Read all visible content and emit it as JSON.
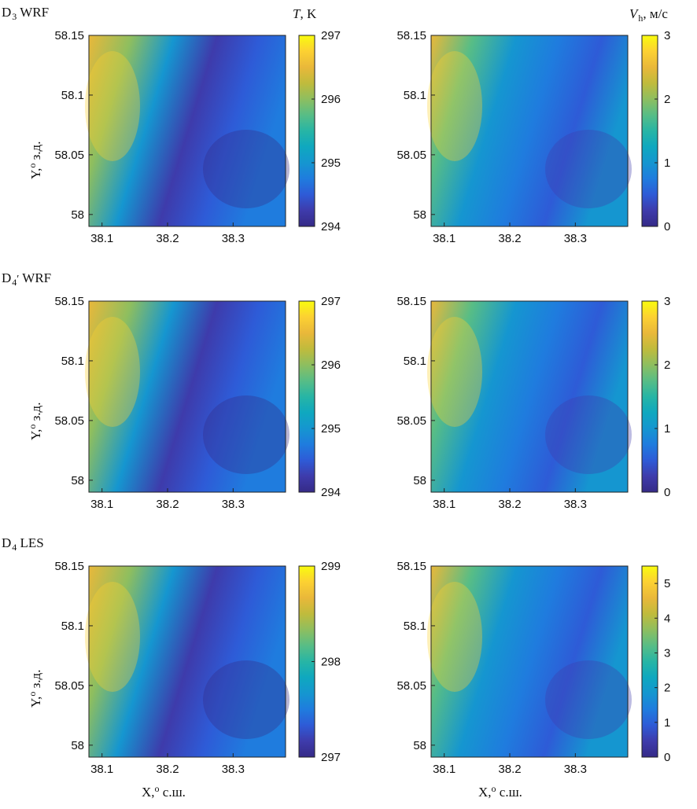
{
  "figure": {
    "rows": [
      {
        "title_prefix": "D",
        "title_sub": "3",
        "title_prime": "",
        "title_rest": " WRF"
      },
      {
        "title_prefix": "D",
        "title_sub": "4",
        "title_prime": "′",
        "title_rest": " WRF"
      },
      {
        "title_prefix": "D",
        "title_sub": "4",
        "title_prime": "",
        "title_rest": " LES"
      }
    ],
    "y_axis_label": {
      "main": "Y,",
      "sup": "o",
      "rest": " з.д."
    },
    "x_axis_label": {
      "main": "X,",
      "sup": "o",
      "rest": " с.ш."
    },
    "temp_unit": {
      "symbol": "T",
      "rest": ", K"
    },
    "wind_unit": {
      "symbol": "V",
      "sub": "h",
      "rest": ", м/с"
    }
  },
  "chart_data": [
    {
      "type": "heatmap",
      "id": "T_D3_WRF",
      "variable": "temperature",
      "x_ticks": [
        "38.1",
        "38.2",
        "38.3"
      ],
      "y_ticks": [
        "58.15",
        "58.1",
        "58.05",
        "58"
      ],
      "xlim": [
        38.08,
        38.38
      ],
      "ylim": [
        57.99,
        58.15
      ],
      "colorbar": {
        "min": 294,
        "max": 297,
        "ticks": [
          "297",
          "296",
          "295",
          "294"
        ]
      }
    },
    {
      "type": "heatmap",
      "id": "V_D3_WRF",
      "variable": "wind_speed",
      "x_ticks": [
        "38.1",
        "38.2",
        "38.3"
      ],
      "y_ticks": [
        "58.15",
        "58.1",
        "58.05",
        "58"
      ],
      "xlim": [
        38.08,
        38.38
      ],
      "ylim": [
        57.99,
        58.15
      ],
      "colorbar": {
        "min": 0,
        "max": 3,
        "ticks": [
          "3",
          "2",
          "1",
          "0"
        ]
      }
    },
    {
      "type": "heatmap",
      "id": "T_D4p_WRF",
      "variable": "temperature",
      "x_ticks": [
        "38.1",
        "38.2",
        "38.3"
      ],
      "y_ticks": [
        "58.15",
        "58.1",
        "58.05",
        "58"
      ],
      "xlim": [
        38.08,
        38.38
      ],
      "ylim": [
        57.99,
        58.15
      ],
      "colorbar": {
        "min": 294,
        "max": 297,
        "ticks": [
          "297",
          "296",
          "295",
          "294"
        ]
      }
    },
    {
      "type": "heatmap",
      "id": "V_D4p_WRF",
      "variable": "wind_speed",
      "x_ticks": [
        "38.1",
        "38.2",
        "38.3"
      ],
      "y_ticks": [
        "58.15",
        "58.1",
        "58.05",
        "58"
      ],
      "xlim": [
        38.08,
        38.38
      ],
      "ylim": [
        57.99,
        58.15
      ],
      "colorbar": {
        "min": 0,
        "max": 3,
        "ticks": [
          "3",
          "2",
          "1",
          "0"
        ]
      }
    },
    {
      "type": "heatmap",
      "id": "T_D4_LES",
      "variable": "temperature",
      "x_ticks": [
        "38.1",
        "38.2",
        "38.3"
      ],
      "y_ticks": [
        "58.15",
        "58.1",
        "58.05",
        "58"
      ],
      "xlim": [
        38.08,
        38.38
      ],
      "ylim": [
        57.99,
        58.15
      ],
      "colorbar": {
        "min": 297,
        "max": 299,
        "ticks": [
          "299",
          "298",
          "297"
        ]
      }
    },
    {
      "type": "heatmap",
      "id": "V_D4_LES",
      "variable": "wind_speed",
      "x_ticks": [
        "38.1",
        "38.2",
        "38.3"
      ],
      "y_ticks": [
        "58.15",
        "58.1",
        "58.05",
        "58"
      ],
      "xlim": [
        38.08,
        38.38
      ],
      "ylim": [
        57.99,
        58.15
      ],
      "colorbar": {
        "min": 0,
        "max": 5.5,
        "ticks": [
          "5",
          "4",
          "3",
          "2",
          "1",
          "0"
        ]
      }
    }
  ]
}
